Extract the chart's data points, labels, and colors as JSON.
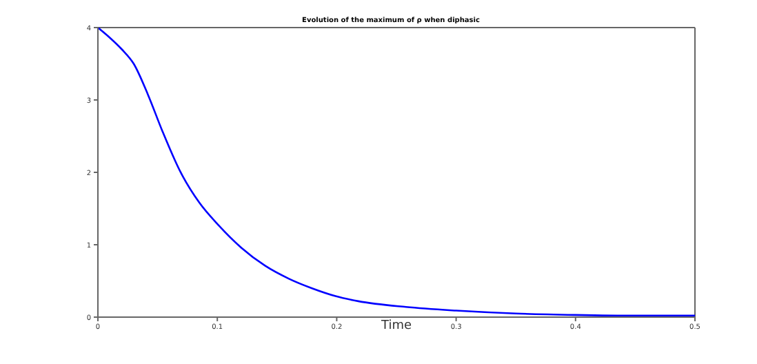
{
  "chart_data": {
    "type": "line",
    "title": "Evolution of the maximum of ρ when diphasic",
    "xlabel": "Time",
    "x": [
      0,
      0.01,
      0.02,
      0.03,
      0.042,
      0.054,
      0.069,
      0.085,
      0.101,
      0.12,
      0.14,
      0.16,
      0.179,
      0.199,
      0.218,
      0.258,
      0.3,
      0.35,
      0.4,
      0.45,
      0.5
    ],
    "series": [
      {
        "color": "#0000ff",
        "values": [
          4,
          3.86,
          3.7,
          3.5,
          3.07,
          2.57,
          2.01,
          1.58,
          1.27,
          0.96,
          0.71,
          0.53,
          0.4,
          0.29,
          0.22,
          0.14,
          0.09,
          0.05,
          0.03,
          0.02,
          0.02
        ]
      }
    ],
    "xlim": [
      0,
      0.5
    ],
    "xticks": [
      0,
      0.1,
      0.2,
      0.3,
      0.4,
      0.5
    ],
    "ylim": [
      0,
      4
    ],
    "yticks": [
      0,
      1,
      2,
      3,
      4
    ],
    "grid": false,
    "legend": false,
    "marker": "none",
    "line_style": "solid"
  }
}
